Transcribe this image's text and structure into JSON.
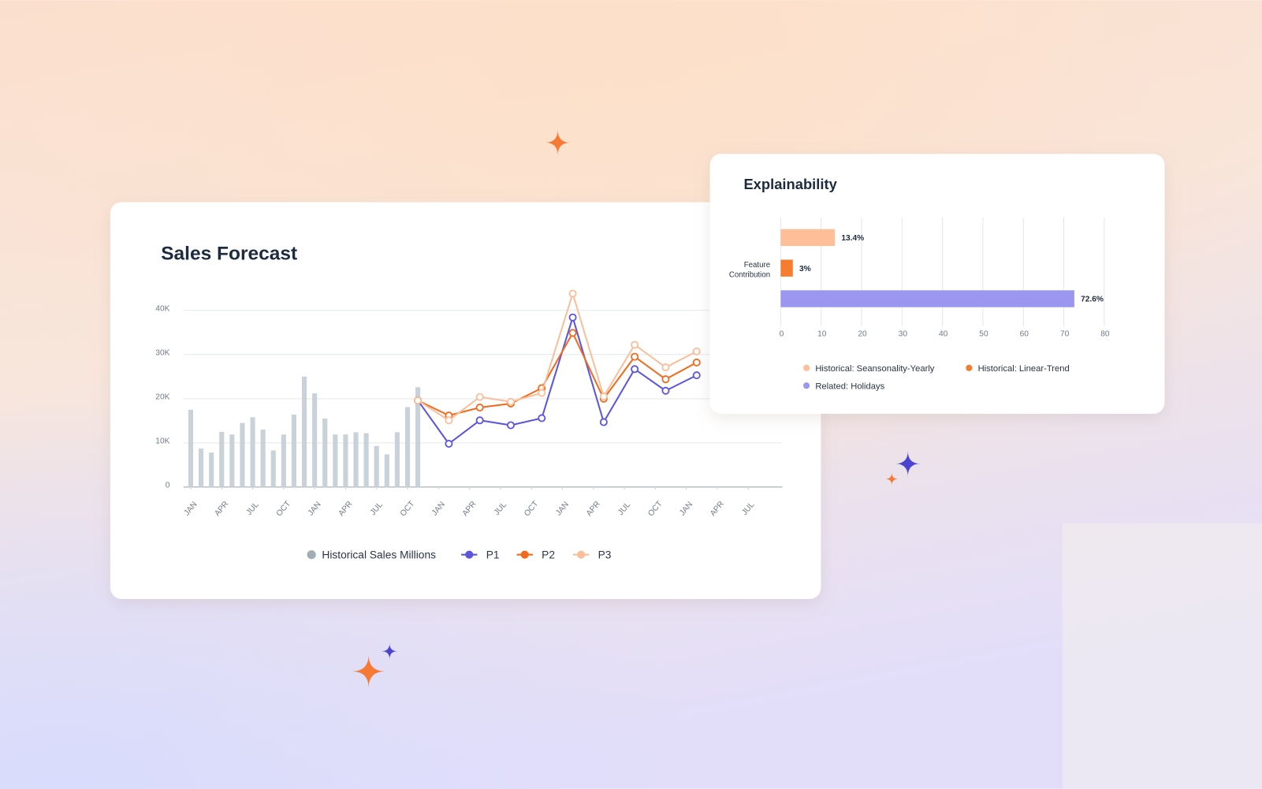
{
  "chart_data": [
    {
      "type": "combo",
      "title": "Sales Forecast",
      "xlim": [
        -0.7,
        57.3
      ],
      "xticks": [
        {
          "value": 0,
          "label": "JAN"
        },
        {
          "value": 3,
          "label": "APR"
        },
        {
          "value": 6,
          "label": "JUL"
        },
        {
          "value": 9,
          "label": "OCT"
        },
        {
          "value": 12,
          "label": "JAN"
        },
        {
          "value": 15,
          "label": "APR"
        },
        {
          "value": 18,
          "label": "JUL"
        },
        {
          "value": 21,
          "label": "OCT"
        },
        {
          "value": 24,
          "label": "JAN"
        },
        {
          "value": 27,
          "label": "APR"
        },
        {
          "value": 30,
          "label": "JUL"
        },
        {
          "value": 33,
          "label": "OCT"
        },
        {
          "value": 36,
          "label": "JAN"
        },
        {
          "value": 39,
          "label": "APR"
        },
        {
          "value": 42,
          "label": "JUL"
        },
        {
          "value": 45,
          "label": "OCT"
        },
        {
          "value": 48,
          "label": "JAN"
        },
        {
          "value": 51,
          "label": "APR"
        },
        {
          "value": 54,
          "label": "JUL"
        }
      ],
      "ylim": [
        0,
        45
      ],
      "yticks": [
        0,
        {
          "value": 10,
          "label": "10K"
        },
        {
          "value": 20,
          "label": "20K"
        },
        {
          "value": 30,
          "label": "30K"
        },
        {
          "value": 40,
          "label": "40K"
        }
      ],
      "grid": true,
      "series": [
        {
          "name": "Historical Sales Millions",
          "type": "bar",
          "color": "#c9d1d9",
          "legend_color": "#a2acb5",
          "x": [
            0,
            1,
            2,
            3,
            4,
            5,
            6,
            7,
            8,
            9,
            10,
            11,
            12,
            13,
            14,
            15,
            16,
            17,
            18,
            19,
            20,
            21,
            22
          ],
          "values": [
            17.5,
            8.7,
            7.8,
            12.5,
            11.9,
            14.5,
            15.8,
            13.0,
            8.3,
            11.9,
            16.4,
            25.0,
            21.2,
            15.5,
            11.9,
            11.9,
            12.4,
            12.2,
            9.3,
            7.4,
            12.4,
            18.1,
            22.6
          ]
        },
        {
          "name": "P1",
          "type": "line",
          "color": "#5b55e0",
          "x": [
            22,
            25,
            28,
            31,
            34,
            37,
            40,
            43,
            46,
            49
          ],
          "values": [
            19.6,
            9.8,
            15.1,
            14.0,
            15.6,
            38.4,
            14.7,
            26.7,
            21.8,
            25.3
          ]
        },
        {
          "name": "P2",
          "type": "line",
          "color": "#f26b1d",
          "x": [
            22,
            25,
            28,
            31,
            34,
            37,
            40,
            43,
            46,
            49
          ],
          "values": [
            19.6,
            16.2,
            18.0,
            18.9,
            22.4,
            34.9,
            20.0,
            29.5,
            24.4,
            28.2
          ]
        },
        {
          "name": "P3",
          "type": "line",
          "color": "#f9bf9a",
          "x": [
            22,
            25,
            28,
            31,
            34,
            37,
            40,
            43,
            46,
            49
          ],
          "values": [
            19.6,
            15.1,
            20.4,
            19.3,
            21.3,
            43.8,
            20.5,
            32.2,
            27.1,
            30.7
          ]
        }
      ]
    },
    {
      "type": "hbar",
      "title": "Explainability",
      "categories": [
        "Feature Contribution"
      ],
      "xlim": [
        0,
        80
      ],
      "xticks": [
        0,
        10,
        20,
        30,
        40,
        50,
        60,
        70,
        80
      ],
      "grid": true,
      "series": [
        {
          "name": "Historical: Seansonality-Yearly",
          "color": "#fdbf98",
          "values": [
            13.4
          ],
          "value_labels": [
            "13.4%"
          ]
        },
        {
          "name": "Historical: Linear-Trend",
          "color": "#f67d2f",
          "values": [
            3
          ],
          "value_labels": [
            "3%"
          ]
        },
        {
          "name": "Related: Holidays",
          "color": "#9b97f0",
          "values": [
            72.6
          ],
          "value_labels": [
            "72.6%"
          ]
        }
      ]
    }
  ]
}
